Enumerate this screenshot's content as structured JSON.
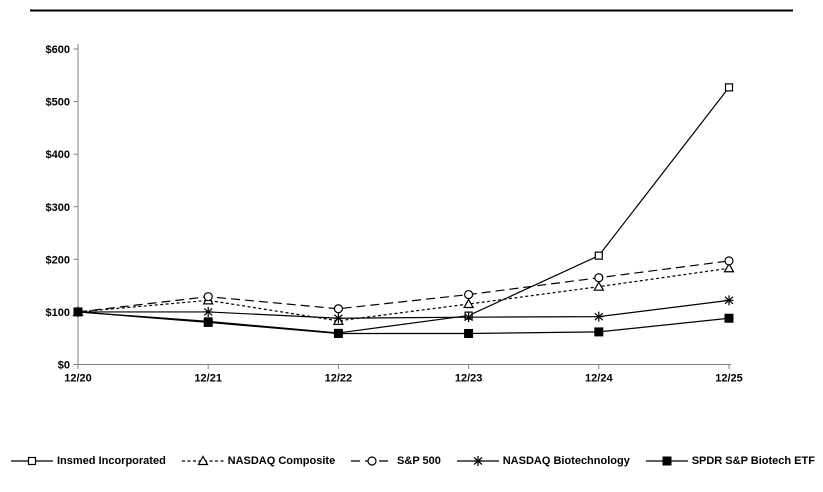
{
  "figure": {
    "background_color": "#ffffff",
    "axis_color": "#808080",
    "text_color": "#000000",
    "line_color": "#000000",
    "top_border": true,
    "y_tick_labels": [
      "$0",
      "$100",
      "$200",
      "$300",
      "$400",
      "$500",
      "$600"
    ]
  },
  "chart_data": {
    "type": "line",
    "title": "",
    "xlabel": "",
    "ylabel": "",
    "categories": [
      "12/20",
      "12/21",
      "12/22",
      "12/23",
      "12/24",
      "12/25"
    ],
    "series": [
      {
        "name": "Insmed Incorporated",
        "line": "solid",
        "marker": "open-square",
        "values": [
          100,
          82,
          60,
          93,
          207,
          527
        ]
      },
      {
        "name": "NASDAQ Composite",
        "line": "dotted",
        "marker": "open-triangle",
        "values": [
          100,
          122,
          83,
          115,
          148,
          183
        ]
      },
      {
        "name": "S&P 500",
        "line": "dashed",
        "marker": "open-circle",
        "values": [
          100,
          129,
          106,
          133,
          165,
          197
        ]
      },
      {
        "name": "NASDAQ Biotechnology",
        "line": "solid",
        "marker": "asterisk",
        "values": [
          100,
          100,
          88,
          90,
          91,
          122
        ]
      },
      {
        "name": "SPDR S&P Biotech ETF",
        "line": "solid",
        "marker": "filled-square",
        "values": [
          100,
          80,
          59,
          59,
          62,
          88
        ]
      }
    ],
    "ylim": [
      0,
      600
    ],
    "y_tick_step": 100,
    "currency_prefix": "$",
    "grid": false,
    "legend_position": "bottom"
  }
}
